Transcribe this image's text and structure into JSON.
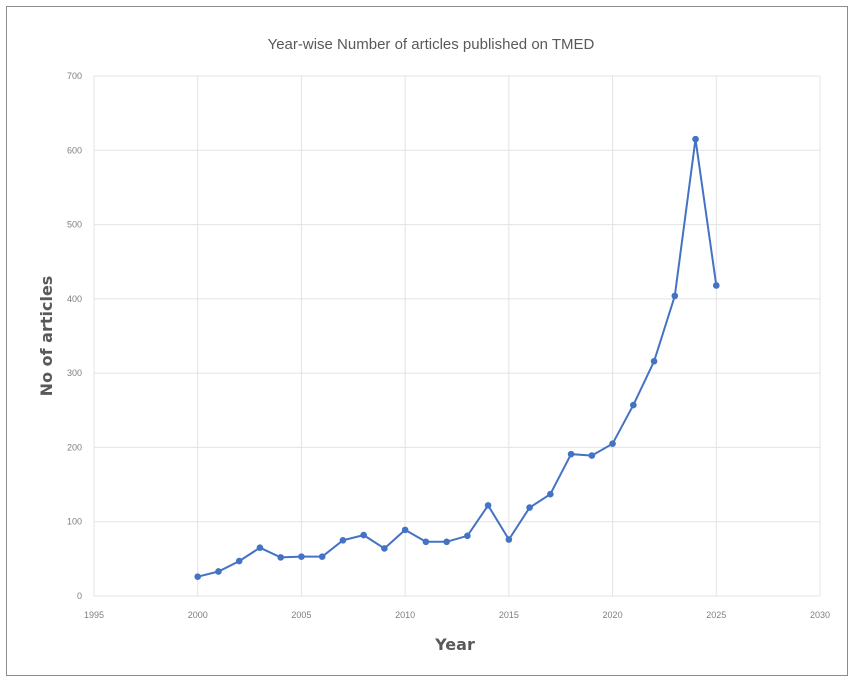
{
  "chart_data": {
    "type": "line",
    "title": "Year-wise Number of articles published on TMED",
    "xlabel": "Year",
    "ylabel": "No of articles",
    "xlim": [
      1995,
      2030
    ],
    "ylim": [
      0,
      700
    ],
    "xticks": [
      1995,
      2000,
      2005,
      2010,
      2015,
      2020,
      2025,
      2030
    ],
    "yticks": [
      0,
      100,
      200,
      300,
      400,
      500,
      600,
      700
    ],
    "grid": true,
    "legend": "none",
    "color": "#4472c4",
    "series": [
      {
        "x": [
          2000,
          2001,
          2002,
          2003,
          2004,
          2005,
          2006,
          2007,
          2008,
          2009,
          2010,
          2011,
          2012,
          2013,
          2014,
          2015,
          2016,
          2017,
          2018,
          2019,
          2020,
          2021,
          2022,
          2023,
          2024,
          2025
        ],
        "y": [
          26,
          33,
          47,
          65,
          52,
          53,
          53,
          75,
          82,
          64,
          89,
          73,
          73,
          81,
          122,
          76,
          119,
          137,
          191,
          189,
          205,
          257,
          316,
          404,
          615,
          418
        ]
      }
    ]
  }
}
